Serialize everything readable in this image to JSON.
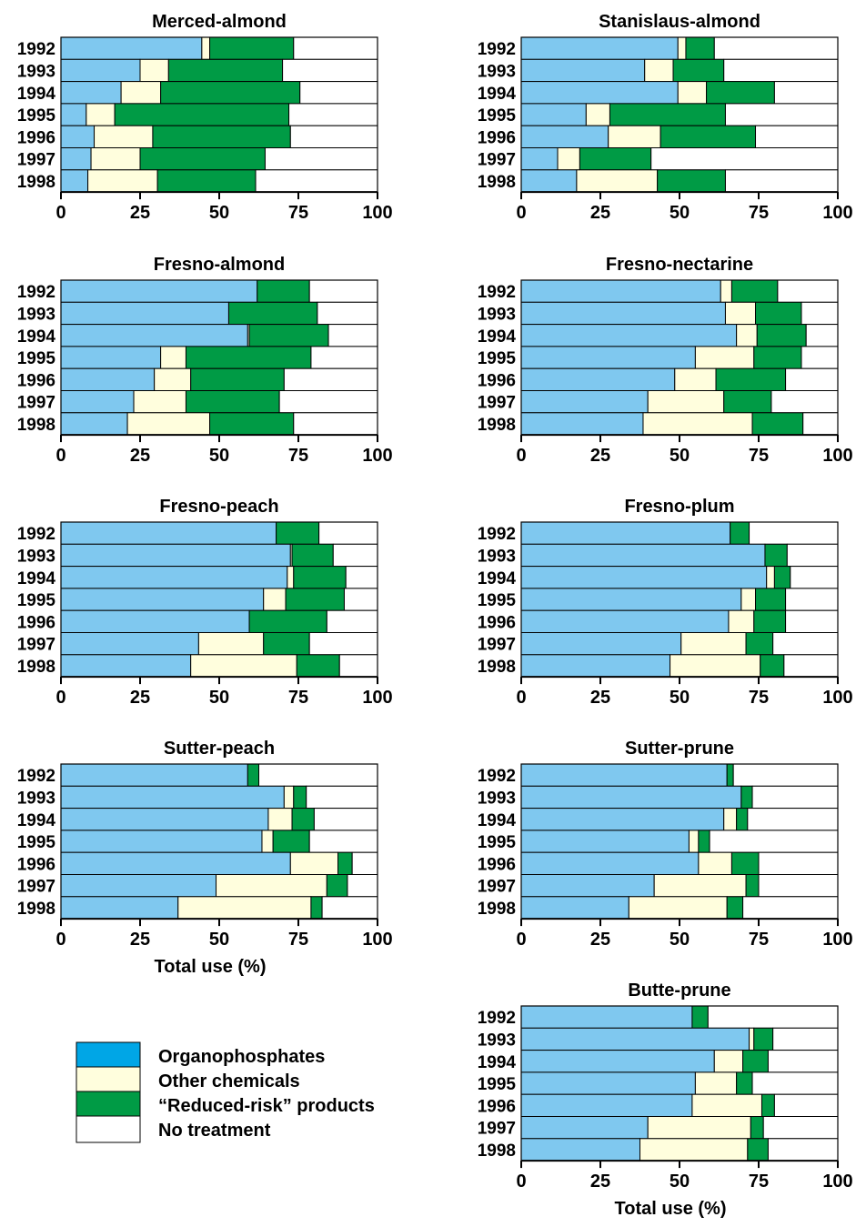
{
  "colors": {
    "organophosphates": "#7fc8ef",
    "other_chemicals": "#fffedd",
    "reduced_risk": "#009b45",
    "no_treatment": "#ffffff",
    "legend_organophosphates": "#00a6e6",
    "outline": "#000000"
  },
  "legend": {
    "placement": "bottom-left",
    "items": [
      {
        "label": "Organophosphates",
        "color_key": "legend_organophosphates"
      },
      {
        "label": "Other chemicals",
        "color_key": "other_chemicals"
      },
      {
        "label": "“Reduced-risk” products",
        "color_key": "reduced_risk"
      },
      {
        "label": "No treatment",
        "color_key": "no_treatment"
      }
    ]
  },
  "chart_data": [
    {
      "type": "bar",
      "orientation": "horizontal",
      "stacked": true,
      "title": "Merced-almond",
      "xlabel": "",
      "xlim": [
        0,
        100
      ],
      "xticks": [
        "0",
        "25",
        "50",
        "75",
        "100"
      ],
      "categories": [
        "1992",
        "1993",
        "1994",
        "1995",
        "1996",
        "1997",
        "1998"
      ],
      "series": [
        {
          "name": "Organophosphates",
          "values": [
            44.5,
            25,
            19,
            8,
            10.5,
            9.5,
            8.5
          ]
        },
        {
          "name": "Other chemicals",
          "values": [
            2.5,
            9,
            12.5,
            9,
            18.5,
            15.5,
            22
          ]
        },
        {
          "name": "“Reduced-risk” products",
          "values": [
            26.5,
            36,
            44,
            55,
            43.5,
            39.5,
            31
          ]
        },
        {
          "name": "No treatment",
          "values": [
            26.5,
            30,
            24.5,
            28,
            27.5,
            35.5,
            38.5
          ]
        }
      ]
    },
    {
      "type": "bar",
      "orientation": "horizontal",
      "stacked": true,
      "title": "Stanislaus-almond",
      "xlabel": "",
      "xlim": [
        0,
        100
      ],
      "xticks": [
        "0",
        "25",
        "50",
        "75",
        "100"
      ],
      "categories": [
        "1992",
        "1993",
        "1994",
        "1995",
        "1996",
        "1997",
        "1998"
      ],
      "series": [
        {
          "name": "Organophosphates",
          "values": [
            49.5,
            39,
            49.5,
            20.5,
            27.5,
            11.5,
            17.5
          ]
        },
        {
          "name": "Other chemicals",
          "values": [
            2.5,
            9,
            9,
            7.5,
            16.5,
            7,
            25.5
          ]
        },
        {
          "name": "“Reduced-risk” products",
          "values": [
            9,
            16,
            21.5,
            36.5,
            30,
            22.5,
            21.5
          ]
        },
        {
          "name": "No treatment",
          "values": [
            39,
            36,
            20,
            35.5,
            26,
            59,
            35.5
          ]
        }
      ]
    },
    {
      "type": "bar",
      "orientation": "horizontal",
      "stacked": true,
      "title": "Fresno-almond",
      "xlabel": "",
      "xlim": [
        0,
        100
      ],
      "xticks": [
        "0",
        "25",
        "50",
        "75",
        "100"
      ],
      "categories": [
        "1992",
        "1993",
        "1994",
        "1995",
        "1996",
        "1997",
        "1998"
      ],
      "series": [
        {
          "name": "Organophosphates",
          "values": [
            62,
            53,
            59,
            31.5,
            29.5,
            23,
            21
          ]
        },
        {
          "name": "Other chemicals",
          "values": [
            0,
            0,
            0.5,
            8,
            11.5,
            16.5,
            26
          ]
        },
        {
          "name": "“Reduced-risk” products",
          "values": [
            16.5,
            28,
            25,
            39.5,
            29.5,
            29.5,
            26.5
          ]
        },
        {
          "name": "No treatment",
          "values": [
            21.5,
            19,
            15.5,
            21,
            29.5,
            31,
            26.5
          ]
        }
      ]
    },
    {
      "type": "bar",
      "orientation": "horizontal",
      "stacked": true,
      "title": "Fresno-nectarine",
      "xlabel": "",
      "xlim": [
        0,
        100
      ],
      "xticks": [
        "0",
        "25",
        "50",
        "75",
        "100"
      ],
      "categories": [
        "1992",
        "1993",
        "1994",
        "1995",
        "1996",
        "1997",
        "1998"
      ],
      "series": [
        {
          "name": "Organophosphates",
          "values": [
            63,
            64.5,
            68,
            55,
            48.5,
            40,
            38.5
          ]
        },
        {
          "name": "Other chemicals",
          "values": [
            3.5,
            9.5,
            6.5,
            18.5,
            13,
            24,
            34.5
          ]
        },
        {
          "name": "“Reduced-risk” products",
          "values": [
            14.5,
            14.5,
            15.5,
            15,
            22,
            15,
            16
          ]
        },
        {
          "name": "No treatment",
          "values": [
            19,
            11.5,
            10,
            11.5,
            16.5,
            21,
            11
          ]
        }
      ]
    },
    {
      "type": "bar",
      "orientation": "horizontal",
      "stacked": true,
      "title": "Fresno-peach",
      "xlabel": "",
      "xlim": [
        0,
        100
      ],
      "xticks": [
        "0",
        "25",
        "50",
        "75",
        "100"
      ],
      "categories": [
        "1992",
        "1993",
        "1994",
        "1995",
        "1996",
        "1997",
        "1998"
      ],
      "series": [
        {
          "name": "Organophosphates",
          "values": [
            68,
            72.5,
            71.5,
            64,
            59.5,
            43.5,
            41
          ]
        },
        {
          "name": "Other chemicals",
          "values": [
            0,
            0.5,
            2,
            7,
            0,
            20.5,
            33.5
          ]
        },
        {
          "name": "“Reduced-risk” products",
          "values": [
            13.5,
            13,
            16.5,
            18.5,
            24.5,
            14.5,
            13.5
          ]
        },
        {
          "name": "No treatment",
          "values": [
            18.5,
            14,
            10,
            10.5,
            16,
            21.5,
            12
          ]
        }
      ]
    },
    {
      "type": "bar",
      "orientation": "horizontal",
      "stacked": true,
      "title": "Fresno-plum",
      "xlabel": "",
      "xlim": [
        0,
        100
      ],
      "xticks": [
        "0",
        "25",
        "50",
        "75",
        "100"
      ],
      "categories": [
        "1992",
        "1993",
        "1994",
        "1995",
        "1996",
        "1997",
        "1998"
      ],
      "series": [
        {
          "name": "Organophosphates",
          "values": [
            66,
            77,
            77.5,
            69.5,
            65.5,
            50.5,
            47
          ]
        },
        {
          "name": "Other chemicals",
          "values": [
            0,
            0,
            2.5,
            4.5,
            8,
            20.5,
            28.5
          ]
        },
        {
          "name": "“Reduced-risk” products",
          "values": [
            6,
            7,
            5,
            9.5,
            10,
            8.5,
            7.5
          ]
        },
        {
          "name": "No treatment",
          "values": [
            28,
            16,
            15,
            16.5,
            16.5,
            20.5,
            17
          ]
        }
      ]
    },
    {
      "type": "bar",
      "orientation": "horizontal",
      "stacked": true,
      "title": "Sutter-peach",
      "xlabel": "Total use (%)",
      "xlim": [
        0,
        100
      ],
      "xticks": [
        "0",
        "25",
        "50",
        "75",
        "100"
      ],
      "categories": [
        "1992",
        "1993",
        "1994",
        "1995",
        "1996",
        "1997",
        "1998"
      ],
      "series": [
        {
          "name": "Organophosphates",
          "values": [
            59,
            70.5,
            65.5,
            63.5,
            72.5,
            49,
            37
          ]
        },
        {
          "name": "Other chemicals",
          "values": [
            0,
            3,
            7.5,
            3.5,
            15,
            35,
            42
          ]
        },
        {
          "name": "“Reduced-risk” products",
          "values": [
            3.5,
            4,
            7,
            11.5,
            4.5,
            6.5,
            3.5
          ]
        },
        {
          "name": "No treatment",
          "values": [
            37.5,
            22.5,
            20,
            21.5,
            8,
            9.5,
            17.5
          ]
        }
      ]
    },
    {
      "type": "bar",
      "orientation": "horizontal",
      "stacked": true,
      "title": "Sutter-prune",
      "xlabel": "",
      "xlim": [
        0,
        100
      ],
      "xticks": [
        "0",
        "25",
        "50",
        "75",
        "100"
      ],
      "categories": [
        "1992",
        "1993",
        "1994",
        "1995",
        "1996",
        "1997",
        "1998"
      ],
      "series": [
        {
          "name": "Organophosphates",
          "values": [
            65,
            69.5,
            64,
            53,
            56,
            42,
            34
          ]
        },
        {
          "name": "Other chemicals",
          "values": [
            0,
            0,
            4,
            3,
            10.5,
            29,
            31
          ]
        },
        {
          "name": "“Reduced-risk” products",
          "values": [
            2,
            3.5,
            3.5,
            3.5,
            8.5,
            4,
            5
          ]
        },
        {
          "name": "No treatment",
          "values": [
            33,
            27,
            28.5,
            40.5,
            25,
            25,
            30
          ]
        }
      ]
    },
    {
      "type": "bar",
      "orientation": "horizontal",
      "stacked": true,
      "title": "Butte-prune",
      "xlabel": "Total use (%)",
      "xlim": [
        0,
        100
      ],
      "xticks": [
        "0",
        "25",
        "50",
        "75",
        "100"
      ],
      "categories": [
        "1992",
        "1993",
        "1994",
        "1995",
        "1996",
        "1997",
        "1998"
      ],
      "series": [
        {
          "name": "Organophosphates",
          "values": [
            54,
            72,
            61,
            55,
            54,
            40,
            37.5
          ]
        },
        {
          "name": "Other chemicals",
          "values": [
            0,
            1.5,
            9,
            13,
            22,
            32.5,
            34
          ]
        },
        {
          "name": "“Reduced-risk” products",
          "values": [
            5,
            6,
            8,
            5,
            4,
            4,
            6.5
          ]
        },
        {
          "name": "No treatment",
          "values": [
            41,
            20.5,
            22,
            27,
            20,
            23.5,
            22
          ]
        }
      ]
    }
  ]
}
